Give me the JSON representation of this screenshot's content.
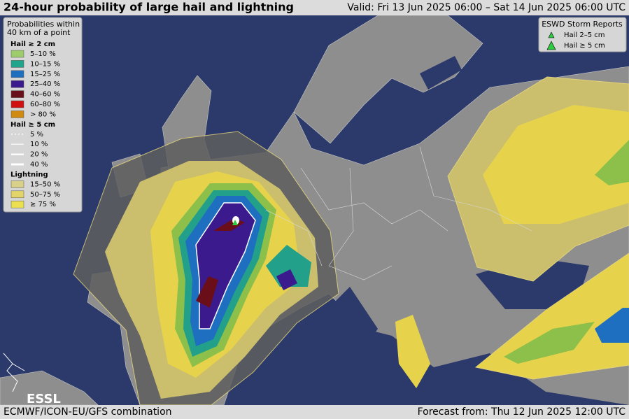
{
  "header": {
    "title": "24-hour probability of large hail and lightning",
    "valid": "Valid: Fri 13 Jun 2025 06:00 – Sat 14 Jun 2025 06:00 UTC"
  },
  "legend": {
    "heading": [
      "Probabilities within",
      "40 km of a point"
    ],
    "sections": [
      {
        "title": "Hail ≥ 2 cm",
        "items": [
          "5–10 %",
          "10–15 %",
          "15–25 %",
          "25–40 %",
          "40–60 %",
          "60–80 %",
          "> 80 %"
        ]
      },
      {
        "title": "Hail ≥ 5 cm",
        "items": [
          "5 %",
          "10 %",
          "20 %",
          "40 %"
        ]
      },
      {
        "title": "Lightning",
        "items": [
          "15–50 %",
          "50–75 %",
          "≥ 75 %"
        ]
      }
    ]
  },
  "storm_reports": {
    "title": "ESWD Storm Reports",
    "items": [
      "Hail 2–5 cm",
      "Hail ≥ 5 cm"
    ]
  },
  "logo": "ESSL",
  "footer": {
    "left": "ECMWF/ICON-EU/GFS combination",
    "right": "Forecast from: Thu 12 Jun 2025 12:00 UTC"
  }
}
